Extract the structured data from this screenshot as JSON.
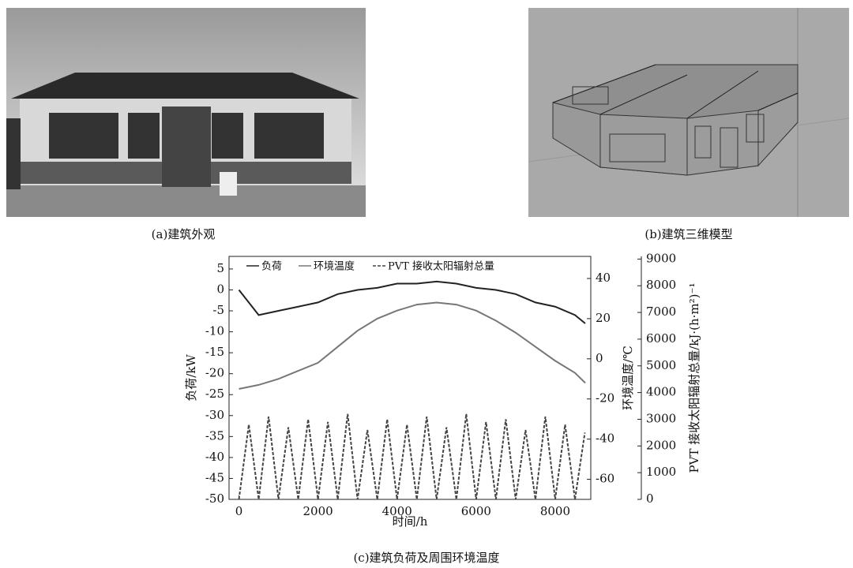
{
  "panels": [
    {
      "caption": "(a)建筑外观"
    },
    {
      "caption": "(b)建筑三维模型"
    }
  ],
  "chart_data": {
    "type": "line",
    "caption": "(c)建筑负荷及周围环境温度",
    "x_label": "时间/h",
    "y_label": "负荷/kW",
    "y2_label": "环境温度/℃",
    "y3_label": "PVT 接收太阳辐射总量/kJ·(h·m²)⁻¹",
    "xlim": [
      -250,
      8900
    ],
    "xticks": [
      0,
      2000,
      4000,
      6000,
      8000
    ],
    "ylim": [
      -50,
      8
    ],
    "yticks": [
      -50,
      -45,
      -40,
      -35,
      -30,
      -25,
      -20,
      -15,
      -10,
      -5,
      0,
      5
    ],
    "y2lim": [
      -70,
      51
    ],
    "y2ticks": [
      -60,
      -40,
      -20,
      0,
      20,
      40
    ],
    "y3lim": [
      0,
      9100
    ],
    "y3ticks": [
      0,
      1000,
      2000,
      3000,
      4000,
      5000,
      6000,
      7000,
      8000,
      9000
    ],
    "series": [
      {
        "name": "负荷",
        "color": "#222222",
        "dash": false,
        "x": [
          0,
          500,
          1000,
          1500,
          2000,
          2500,
          3000,
          3500,
          4000,
          4500,
          5000,
          5500,
          6000,
          6500,
          7000,
          7500,
          8000,
          8500,
          8760
        ],
        "values": [
          0,
          -6,
          -5,
          -4,
          -3,
          -1,
          0,
          0.5,
          1.5,
          1.5,
          2,
          1.5,
          0.5,
          0,
          -1,
          -3,
          -4,
          -6,
          -8
        ]
      },
      {
        "name": "环境温度",
        "color": "#777777",
        "dash": false,
        "axis": "y2",
        "x": [
          0,
          500,
          1000,
          1500,
          2000,
          2500,
          3000,
          3500,
          4000,
          4500,
          5000,
          5500,
          6000,
          6500,
          7000,
          7500,
          8000,
          8500,
          8760
        ],
        "values": [
          -15,
          -13,
          -10,
          -6,
          -2,
          6,
          14,
          20,
          24,
          27,
          28,
          27,
          24,
          19,
          13,
          6,
          -1,
          -7,
          -12
        ]
      },
      {
        "name": "PVT 接收太阳辐射总量",
        "color": "#444444",
        "dash": true,
        "axis": "y3",
        "x": [
          0,
          250,
          500,
          750,
          1000,
          1250,
          1500,
          1750,
          2000,
          2250,
          2500,
          2750,
          3000,
          3250,
          3500,
          3750,
          4000,
          4250,
          4500,
          4750,
          5000,
          5250,
          5500,
          5750,
          6000,
          6250,
          6500,
          6750,
          7000,
          7250,
          7500,
          7750,
          8000,
          8250,
          8500,
          8750
        ],
        "values": [
          0,
          2800,
          0,
          3100,
          0,
          2700,
          0,
          3000,
          0,
          2900,
          0,
          3200,
          0,
          2600,
          0,
          3000,
          0,
          2800,
          0,
          3100,
          0,
          2700,
          0,
          3200,
          0,
          2900,
          0,
          3000,
          0,
          2600,
          0,
          3100,
          0,
          2800,
          0,
          2500
        ]
      }
    ]
  }
}
